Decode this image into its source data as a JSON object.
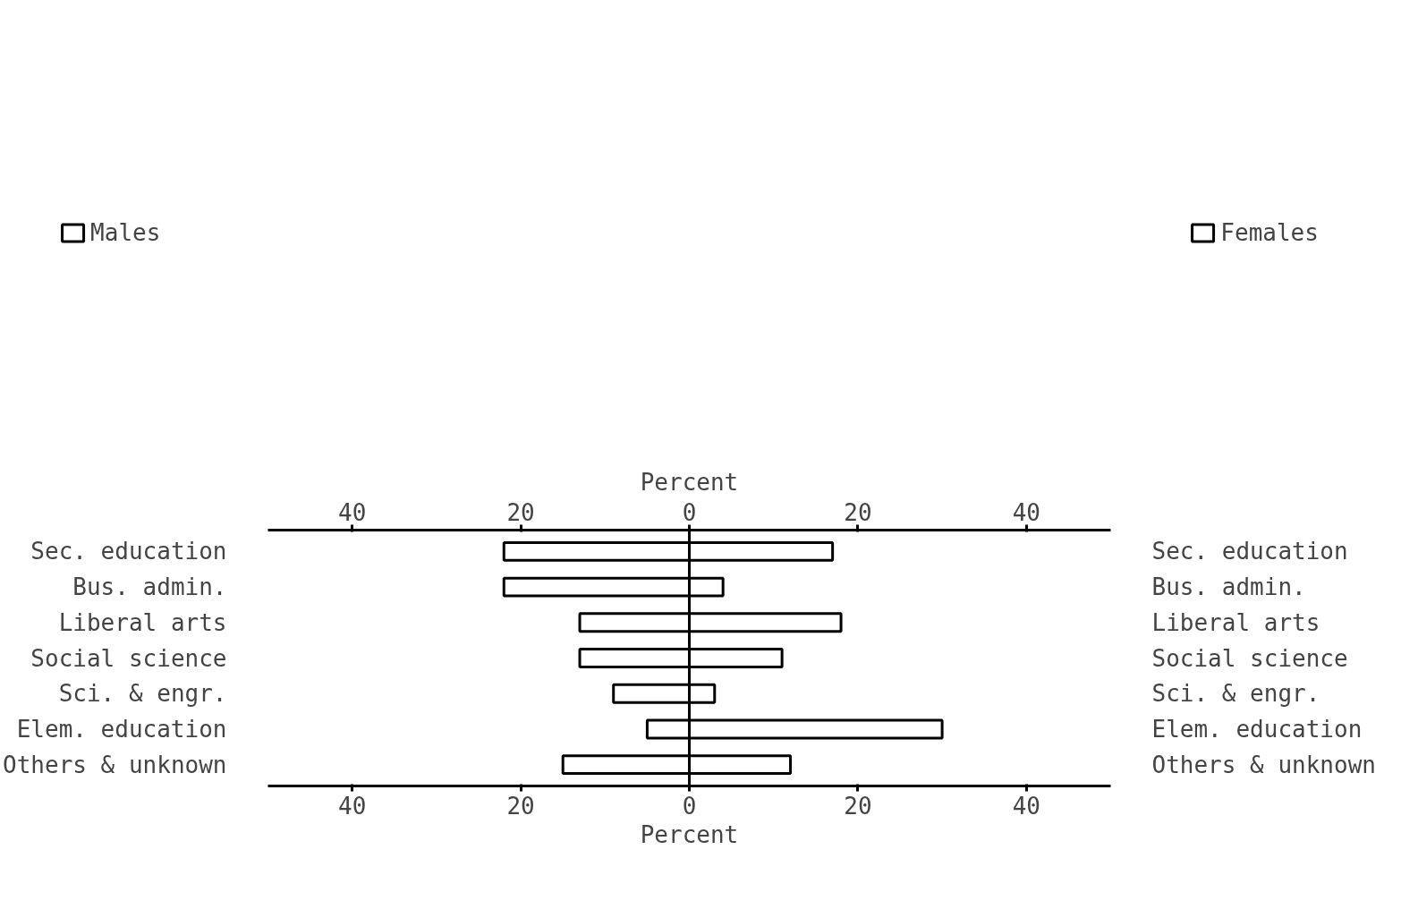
{
  "chart_data": {
    "type": "bar",
    "orientation": "horizontal",
    "stacked": true,
    "categories": [
      "Sec. education",
      "Bus. admin.",
      "Liberal arts",
      "Social science",
      "Sci. & engr.",
      "Elem. education",
      "Others & unknown"
    ],
    "series": [
      {
        "name": "Males",
        "color": "#ffffff",
        "values": [
          -22,
          -22,
          -13,
          -13,
          -9,
          -5,
          -15
        ]
      },
      {
        "name": "Females",
        "color": "#ffffff",
        "values": [
          17,
          4,
          18,
          11,
          3,
          30,
          12
        ]
      }
    ],
    "xlim": [
      -50,
      50
    ],
    "xticks": [
      {
        "value": -40,
        "label": "40"
      },
      {
        "value": -20,
        "label": "20"
      },
      0,
      20,
      40
    ],
    "x2lim": [
      -50,
      50
    ],
    "x2ticks": [
      {
        "value": -40,
        "label": "40"
      },
      {
        "value": -20,
        "label": "20"
      },
      0,
      20,
      40
    ],
    "xlabel": "Percent",
    "x2label": "Percent",
    "ref_lines": [
      {
        "axis": "x",
        "value": 0,
        "color": "#000000"
      }
    ],
    "grid": false,
    "legend": "top"
  }
}
